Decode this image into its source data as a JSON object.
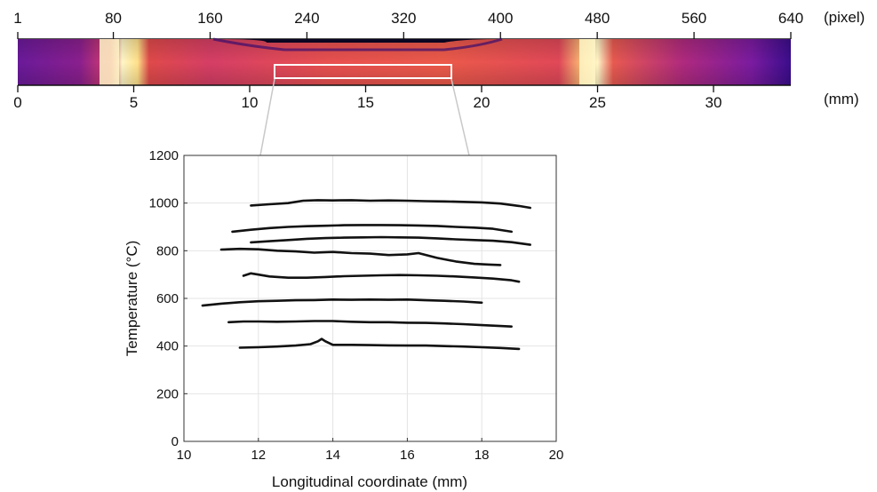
{
  "top_scale": {
    "pixel_ticks": [
      "1",
      "80",
      "160",
      "240",
      "320",
      "400",
      "480",
      "560",
      "640"
    ],
    "pixel_unit": "(pixel)",
    "mm_ticks": [
      "0",
      "5",
      "10",
      "15",
      "20",
      "25",
      "30"
    ],
    "mm_unit": "(mm)"
  },
  "thermal_strip": {
    "colormap": "inferno-like (black-purple-red-orange-yellow-white)",
    "colors": {
      "background": "#7a1aa0",
      "edge_dark": "#3a0d8c",
      "warm": "#e0385a",
      "hot": "#f08a3a",
      "bright": "#fff6c8",
      "cold_top": "#0a0520"
    },
    "highlight_box_color": "#ffffff",
    "zoom_line_color": "#c8c8c8"
  },
  "chart_data": {
    "type": "line",
    "title": "",
    "xlabel": "Longitudinal coordinate (mm)",
    "ylabel": "Temperature (°C)",
    "xlim": [
      10,
      20
    ],
    "ylim": [
      0,
      1200
    ],
    "xticks": [
      10,
      12,
      14,
      16,
      18,
      20
    ],
    "yticks": [
      0,
      200,
      400,
      600,
      800,
      1000,
      1200
    ],
    "grid": true,
    "line_color": "#111111",
    "series": [
      {
        "x": [
          11.8,
          12.3,
          12.8,
          13.2,
          13.6,
          14.0,
          14.5,
          15.0,
          15.5,
          16.0,
          16.5,
          17.0,
          17.5,
          18.0,
          18.5,
          19.0,
          19.3
        ],
        "y": [
          990,
          995,
          1000,
          1010,
          1012,
          1011,
          1012,
          1010,
          1011,
          1010,
          1008,
          1007,
          1005,
          1003,
          998,
          988,
          980
        ]
      },
      {
        "x": [
          11.3,
          11.8,
          12.3,
          12.8,
          13.3,
          13.8,
          14.3,
          14.8,
          15.3,
          15.8,
          16.3,
          16.8,
          17.3,
          17.8,
          18.3,
          18.8
        ],
        "y": [
          880,
          888,
          895,
          900,
          903,
          905,
          907,
          908,
          908,
          907,
          906,
          904,
          900,
          897,
          892,
          880
        ]
      },
      {
        "x": [
          11.8,
          12.3,
          12.8,
          13.3,
          13.8,
          14.3,
          14.8,
          15.3,
          15.8,
          16.3,
          16.8,
          17.3,
          17.8,
          18.3,
          18.8,
          19.3
        ],
        "y": [
          835,
          840,
          845,
          850,
          853,
          855,
          856,
          857,
          856,
          855,
          852,
          848,
          845,
          842,
          836,
          825
        ]
      },
      {
        "x": [
          11.0,
          11.5,
          12.0,
          12.5,
          13.0,
          13.5,
          14.0,
          14.5,
          15.0,
          15.5,
          16.0,
          16.3,
          16.8,
          17.3,
          17.8,
          18.2,
          18.5
        ],
        "y": [
          805,
          808,
          806,
          800,
          797,
          792,
          795,
          790,
          788,
          782,
          785,
          790,
          770,
          755,
          745,
          742,
          740
        ]
      },
      {
        "x": [
          11.6,
          11.8,
          12.0,
          12.3,
          12.8,
          13.3,
          13.8,
          14.3,
          14.8,
          15.3,
          15.8,
          16.3,
          16.8,
          17.3,
          17.8,
          18.3,
          18.8,
          19.0
        ],
        "y": [
          695,
          705,
          700,
          692,
          687,
          687,
          690,
          693,
          695,
          697,
          698,
          697,
          695,
          692,
          688,
          683,
          676,
          670
        ]
      },
      {
        "x": [
          10.5,
          11.0,
          11.5,
          12.0,
          12.5,
          13.0,
          13.5,
          14.0,
          14.5,
          15.0,
          15.5,
          16.0,
          16.5,
          17.0,
          17.5,
          18.0
        ],
        "y": [
          570,
          578,
          584,
          588,
          590,
          592,
          593,
          595,
          594,
          595,
          594,
          595,
          592,
          590,
          587,
          582
        ]
      },
      {
        "x": [
          11.2,
          11.6,
          12.0,
          12.5,
          13.0,
          13.5,
          14.0,
          14.5,
          15.0,
          15.5,
          16.0,
          16.5,
          17.0,
          17.5,
          18.0,
          18.5,
          18.8
        ],
        "y": [
          500,
          503,
          503,
          502,
          503,
          505,
          505,
          502,
          500,
          500,
          498,
          497,
          495,
          492,
          488,
          484,
          482
        ]
      },
      {
        "x": [
          11.5,
          12.0,
          12.5,
          13.0,
          13.4,
          13.6,
          13.7,
          13.8,
          14.0,
          14.5,
          15.0,
          15.5,
          16.0,
          16.5,
          17.0,
          17.5,
          18.0,
          18.5,
          19.0
        ],
        "y": [
          393,
          395,
          398,
          402,
          408,
          420,
          430,
          420,
          405,
          405,
          404,
          403,
          402,
          402,
          400,
          398,
          395,
          392,
          388
        ]
      }
    ]
  }
}
